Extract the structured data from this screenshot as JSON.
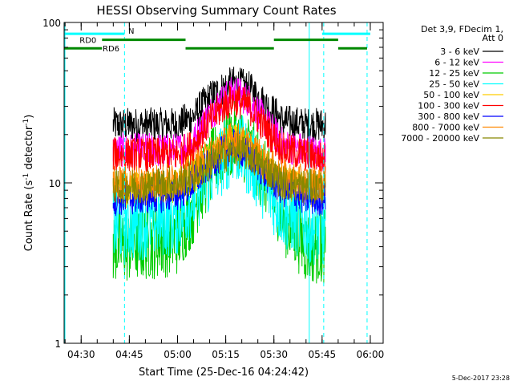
{
  "chart_data": {
    "type": "line",
    "title": "HESSI Observing Summary Count Rates",
    "xlabel": "Start Time (25-Dec-16 04:24:42)",
    "ylabel_main": "Count Rate (s",
    "ylabel_sup1": "-1",
    "ylabel_mid": " detector",
    "ylabel_sup2": "-1",
    "ylabel_end": ")",
    "yscale": "log",
    "ylim": [
      1,
      100
    ],
    "xlim": [
      "04:24:42",
      "06:04:00"
    ],
    "x_ticks": [
      "04:30",
      "04:45",
      "05:00",
      "05:15",
      "05:30",
      "05:45",
      "06:00"
    ],
    "y_ticks": [
      "1",
      "10",
      "100"
    ],
    "legend_header": [
      "Det 3,9, FDecim 1,",
      "Att 0"
    ],
    "legend_position": "top-right",
    "timestamp": "5-Dec-2017 23:28",
    "series": [
      {
        "name": "3 - 6 keV",
        "color": "#000000",
        "times": [
          "04:40",
          "04:44",
          "05:00",
          "05:05",
          "05:10",
          "05:15",
          "05:18",
          "05:22",
          "05:28",
          "05:33",
          "05:40",
          "05:46"
        ],
        "values": [
          23,
          23,
          23,
          26,
          34,
          40,
          42,
          39,
          30,
          24,
          23,
          23
        ]
      },
      {
        "name": "6 - 12 keV",
        "color": "#ff00ff",
        "times": [
          "04:40",
          "04:44",
          "05:00",
          "05:05",
          "05:10",
          "05:15",
          "05:18",
          "05:22",
          "05:28",
          "05:33",
          "05:40",
          "05:46"
        ],
        "values": [
          16,
          16,
          16,
          18,
          27,
          34,
          37,
          33,
          23,
          17,
          16,
          15
        ]
      },
      {
        "name": "12 - 25 keV",
        "color": "#00cc00",
        "times": [
          "04:40",
          "04:44",
          "05:00",
          "05:05",
          "05:10",
          "05:15",
          "05:18",
          "05:22",
          "05:28",
          "05:33",
          "05:40",
          "05:46"
        ],
        "values": [
          4,
          4,
          4.5,
          7,
          12,
          17,
          19,
          16,
          10,
          6,
          4,
          4
        ]
      },
      {
        "name": "25 - 50 keV",
        "color": "#00ffff",
        "times": [
          "04:40",
          "04:44",
          "05:00",
          "05:05",
          "05:10",
          "05:15",
          "05:18",
          "05:22",
          "05:28",
          "05:33",
          "05:40",
          "05:46"
        ],
        "values": [
          5.5,
          5.5,
          6,
          8,
          11,
          15,
          17,
          14,
          9,
          6.5,
          5.5,
          5
        ]
      },
      {
        "name": "50 - 100 keV",
        "color": "#ffcc00",
        "times": [
          "04:40",
          "04:44",
          "05:00",
          "05:05",
          "05:10",
          "05:15",
          "05:18",
          "05:22",
          "05:28",
          "05:33",
          "05:40",
          "05:46"
        ],
        "values": [
          9,
          9,
          9.5,
          11,
          14,
          17,
          18,
          16,
          12,
          10,
          9,
          9
        ]
      },
      {
        "name": "100 - 300 keV",
        "color": "#ff0000",
        "times": [
          "04:40",
          "04:44",
          "05:00",
          "05:05",
          "05:10",
          "05:15",
          "05:18",
          "05:22",
          "05:28",
          "05:33",
          "05:40",
          "05:46"
        ],
        "values": [
          15,
          15,
          15,
          17,
          24,
          31,
          33,
          30,
          21,
          16,
          15,
          14
        ]
      },
      {
        "name": "300 - 800 keV",
        "color": "#0000ff",
        "times": [
          "04:40",
          "04:44",
          "05:00",
          "05:05",
          "05:10",
          "05:15",
          "05:18",
          "05:22",
          "05:28",
          "05:33",
          "05:40",
          "05:46"
        ],
        "values": [
          8,
          8,
          8.5,
          10,
          13,
          16,
          17,
          15,
          11,
          9,
          8,
          8
        ]
      },
      {
        "name": "800 - 7000 keV",
        "color": "#ff8800",
        "times": [
          "04:40",
          "04:44",
          "05:00",
          "05:05",
          "05:10",
          "05:15",
          "05:18",
          "05:22",
          "05:28",
          "05:33",
          "05:40",
          "05:46"
        ],
        "values": [
          10,
          10,
          10.5,
          12,
          15,
          18,
          19,
          17,
          13,
          11,
          10,
          10
        ]
      },
      {
        "name": "7000 - 20000 keV",
        "color": "#888800",
        "times": [
          "04:40",
          "04:44",
          "05:00",
          "05:05",
          "05:10",
          "05:15",
          "05:18",
          "05:22",
          "05:28",
          "05:33",
          "05:40",
          "05:46"
        ],
        "values": [
          9.5,
          9.5,
          10,
          11,
          13,
          15,
          16,
          15,
          12,
          10,
          9.5,
          9.5
        ]
      }
    ],
    "flag_bars": [
      {
        "label": "N",
        "color": "#00ffff",
        "segments": [
          [
            "04:24:42",
            "04:43:30"
          ],
          [
            "05:45:00",
            "06:00:00"
          ]
        ],
        "level": 85
      },
      {
        "label": "RD0",
        "color": "#008800",
        "segments": [
          [
            "04:36:30",
            "05:02:30"
          ],
          [
            "05:30:00",
            "05:50:00"
          ]
        ],
        "level": 78
      },
      {
        "label": "RD6",
        "color": "#008800",
        "segments": [
          [
            "04:24:42",
            "04:36:30"
          ],
          [
            "05:02:30",
            "05:30:00"
          ],
          [
            "05:50:00",
            "05:59:00"
          ]
        ],
        "level": 69
      }
    ],
    "vertical_lines": [
      {
        "time": "04:43:30",
        "style": "dashed",
        "color": "#00ffff"
      },
      {
        "time": "05:41:00",
        "style": "solid",
        "color": "#00ffff"
      },
      {
        "time": "05:45:30",
        "style": "dashed",
        "color": "#00ffff"
      },
      {
        "time": "05:59:00",
        "style": "dashed",
        "color": "#00ffff"
      }
    ]
  }
}
